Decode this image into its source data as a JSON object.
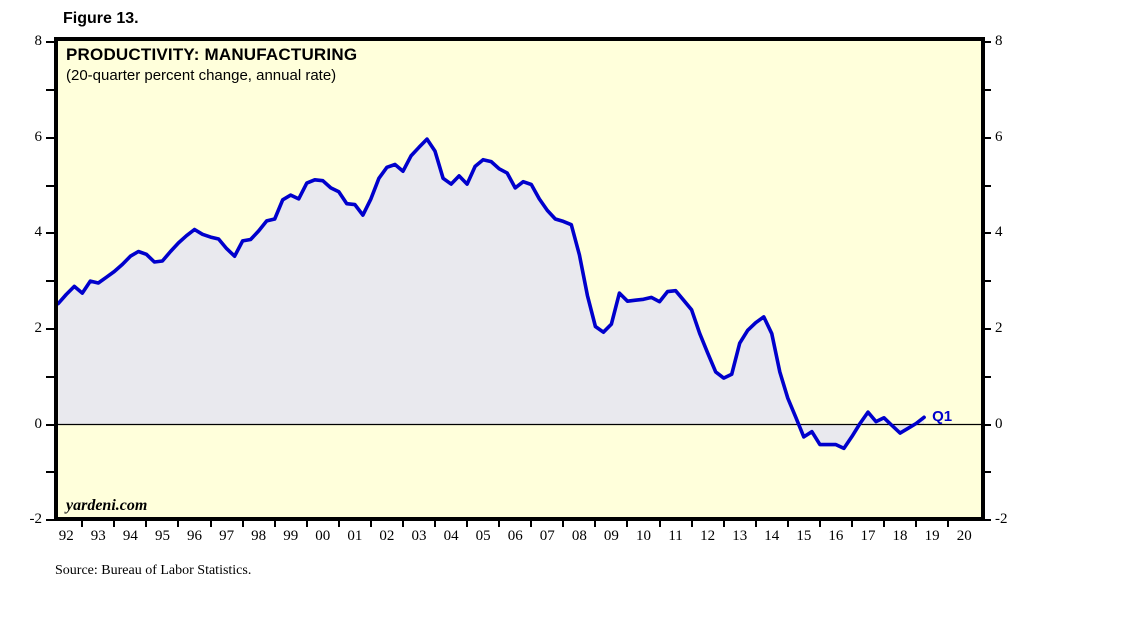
{
  "figure_label": "Figure 13.",
  "chart": {
    "title": "PRODUCTIVITY: MANUFACTURING",
    "subtitle": "(20-quarter percent change, annual rate)",
    "watermark": "yardeni.com",
    "end_point_label": "Q1",
    "source": "Source: Bureau of Labor Statistics."
  },
  "chart_data": {
    "type": "area",
    "title": "PRODUCTIVITY: MANUFACTURING",
    "subtitle": "(20-quarter percent change, annual rate)",
    "frequency": "quarterly",
    "start_period": "1992Q1",
    "end_period": "2019Q1",
    "series": [
      {
        "name": "Manufacturing productivity, 20-quarter percent change at annual rate",
        "values": [
          2.53,
          2.72,
          2.89,
          2.75,
          3.0,
          2.96,
          3.08,
          3.2,
          3.35,
          3.52,
          3.62,
          3.56,
          3.4,
          3.42,
          3.62,
          3.8,
          3.95,
          4.08,
          3.98,
          3.92,
          3.88,
          3.68,
          3.52,
          3.84,
          3.87,
          4.05,
          4.26,
          4.3,
          4.7,
          4.8,
          4.72,
          5.05,
          5.12,
          5.1,
          4.95,
          4.87,
          4.62,
          4.6,
          4.38,
          4.72,
          5.15,
          5.38,
          5.44,
          5.3,
          5.62,
          5.8,
          5.97,
          5.72,
          5.15,
          5.03,
          5.2,
          5.03,
          5.4,
          5.54,
          5.5,
          5.35,
          5.26,
          4.95,
          5.08,
          5.02,
          4.72,
          4.48,
          4.3,
          4.25,
          4.18,
          3.55,
          2.7,
          2.05,
          1.93,
          2.1,
          2.75,
          2.58,
          2.6,
          2.62,
          2.66,
          2.57,
          2.78,
          2.8,
          2.6,
          2.4,
          1.91,
          1.5,
          1.1,
          0.97,
          1.05,
          1.7,
          1.97,
          2.13,
          2.25,
          1.9,
          1.1,
          0.55,
          0.15,
          -0.26,
          -0.15,
          -0.42,
          -0.42,
          -0.42,
          -0.5,
          -0.25,
          0.02,
          0.26,
          0.06,
          0.14,
          -0.02,
          -0.18,
          -0.08,
          0.02,
          0.15
        ]
      }
    ],
    "x_tick_labels": [
      "92",
      "93",
      "94",
      "95",
      "96",
      "97",
      "98",
      "99",
      "00",
      "01",
      "02",
      "03",
      "04",
      "05",
      "06",
      "07",
      "08",
      "09",
      "10",
      "11",
      "12",
      "13",
      "14",
      "15",
      "16",
      "17",
      "18",
      "19",
      "20"
    ],
    "y_major_ticks": [
      -2,
      0,
      2,
      4,
      6,
      8
    ],
    "y_minor_ticks": [
      -1,
      1,
      3,
      5,
      7
    ],
    "ylim": [
      -2,
      8
    ],
    "zero_line": true,
    "grid": false,
    "legend": "none",
    "colors": {
      "line": "#0000CC",
      "fill": "#E9E9EE",
      "plot_background": "#FFFFDB",
      "axis": "#000000",
      "page_background": "#FFFFFF"
    }
  }
}
